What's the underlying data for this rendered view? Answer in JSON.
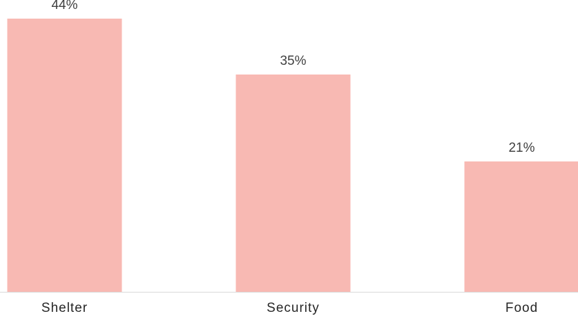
{
  "chart_data": {
    "type": "bar",
    "categories": [
      "Shelter",
      "Security",
      "Food"
    ],
    "values": [
      44,
      35,
      21
    ],
    "data_labels": [
      "44%",
      "35%",
      "21%"
    ],
    "unit": "%",
    "title": "",
    "xlabel": "",
    "ylabel": "",
    "ylim": [
      0,
      47
    ],
    "grid": false,
    "legend": "none",
    "colors": {
      "bar": "#F8B9B3",
      "axis": "#D9D9D9",
      "label": "#404040"
    }
  }
}
